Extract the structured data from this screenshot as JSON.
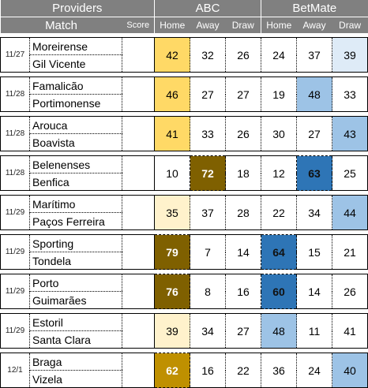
{
  "header": {
    "providers_label": "Providers",
    "abc_label": "ABC",
    "betmate_label": "BetMate",
    "match_label": "Match",
    "score_label": "Score",
    "home_label": "Home",
    "away_label": "Away",
    "draw_label": "Draw"
  },
  "colors": {
    "header_bg": "#808080",
    "abc_light": "#fff2cc",
    "abc_mid": "#ffd966",
    "abc_strong": "#bf9000",
    "abc_dark": "#7f6000",
    "bet_faint": "#deebf7",
    "bet_light": "#9dc3e6",
    "bet_mid": "#2e75b6"
  },
  "matches": [
    {
      "date": "11/27",
      "home": "Moreirense",
      "away": "Gil Vicente",
      "score": "",
      "abc": {
        "home": "42",
        "away": "32",
        "draw": "26"
      },
      "betmate": {
        "home": "24",
        "away": "37",
        "draw": "39"
      }
    },
    {
      "date": "11/28",
      "home": "Famalicão",
      "away": "Portimonense",
      "score": "",
      "abc": {
        "home": "46",
        "away": "27",
        "draw": "27"
      },
      "betmate": {
        "home": "19",
        "away": "48",
        "draw": "33"
      }
    },
    {
      "date": "11/28",
      "home": "Arouca",
      "away": "Boavista",
      "score": "",
      "abc": {
        "home": "41",
        "away": "33",
        "draw": "26"
      },
      "betmate": {
        "home": "30",
        "away": "27",
        "draw": "43"
      }
    },
    {
      "date": "11/28",
      "home": "Belenenses",
      "away": "Benfica",
      "score": "",
      "abc": {
        "home": "10",
        "away": "72",
        "draw": "18"
      },
      "betmate": {
        "home": "12",
        "away": "63",
        "draw": "25"
      }
    },
    {
      "date": "11/29",
      "home": "Marítimo",
      "away": "Paços Ferreira",
      "score": "",
      "abc": {
        "home": "35",
        "away": "37",
        "draw": "28"
      },
      "betmate": {
        "home": "22",
        "away": "34",
        "draw": "44"
      }
    },
    {
      "date": "11/29",
      "home": "Sporting",
      "away": "Tondela",
      "score": "",
      "abc": {
        "home": "79",
        "away": "7",
        "draw": "14"
      },
      "betmate": {
        "home": "64",
        "away": "15",
        "draw": "21"
      }
    },
    {
      "date": "11/29",
      "home": "Porto",
      "away": "Guimarães",
      "score": "",
      "abc": {
        "home": "76",
        "away": "8",
        "draw": "16"
      },
      "betmate": {
        "home": "60",
        "away": "14",
        "draw": "26"
      }
    },
    {
      "date": "11/29",
      "home": "Estoril",
      "away": "Santa Clara",
      "score": "",
      "abc": {
        "home": "39",
        "away": "34",
        "draw": "27"
      },
      "betmate": {
        "home": "48",
        "away": "11",
        "draw": "41"
      }
    },
    {
      "date": "12/1",
      "home": "Braga",
      "away": "Vizela",
      "score": "",
      "abc": {
        "home": "62",
        "away": "16",
        "draw": "22"
      },
      "betmate": {
        "home": "36",
        "away": "24",
        "draw": "40"
      }
    }
  ],
  "highlights": [
    {
      "match": 0,
      "col": "abc.home",
      "shade": "abc_mid"
    },
    {
      "match": 0,
      "col": "betmate.draw",
      "shade": "bet_faint"
    },
    {
      "match": 1,
      "col": "abc.home",
      "shade": "abc_mid"
    },
    {
      "match": 1,
      "col": "betmate.away",
      "shade": "bet_light"
    },
    {
      "match": 2,
      "col": "abc.home",
      "shade": "abc_mid"
    },
    {
      "match": 2,
      "col": "betmate.draw",
      "shade": "bet_light"
    },
    {
      "match": 3,
      "col": "abc.away",
      "shade": "abc_dark"
    },
    {
      "match": 3,
      "col": "betmate.away",
      "shade": "bet_mid"
    },
    {
      "match": 4,
      "col": "abc.home",
      "shade": "abc_light"
    },
    {
      "match": 4,
      "col": "betmate.draw",
      "shade": "bet_light"
    },
    {
      "match": 5,
      "col": "abc.home",
      "shade": "abc_dark"
    },
    {
      "match": 5,
      "col": "betmate.home",
      "shade": "bet_mid"
    },
    {
      "match": 6,
      "col": "abc.home",
      "shade": "abc_dark"
    },
    {
      "match": 6,
      "col": "betmate.home",
      "shade": "bet_mid"
    },
    {
      "match": 7,
      "col": "abc.home",
      "shade": "abc_light"
    },
    {
      "match": 7,
      "col": "betmate.home",
      "shade": "bet_light"
    },
    {
      "match": 8,
      "col": "abc.home",
      "shade": "abc_strong"
    },
    {
      "match": 8,
      "col": "betmate.draw",
      "shade": "bet_light"
    }
  ]
}
